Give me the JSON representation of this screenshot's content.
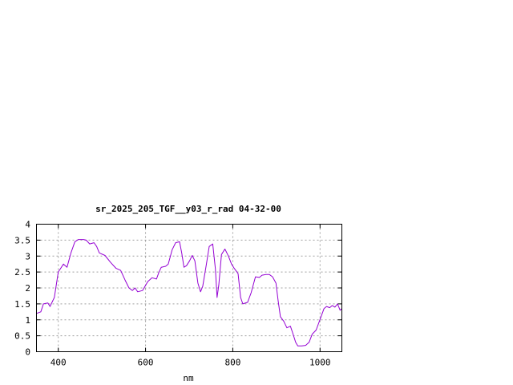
{
  "chart_data": {
    "type": "line",
    "title": "sr_2025_205_TGF__y03_r_rad 04-32-00",
    "xlabel": "nm",
    "ylabel": "",
    "xlim": [
      350,
      1050
    ],
    "ylim": [
      0,
      4
    ],
    "x_ticks": [
      400,
      600,
      800,
      1000
    ],
    "y_ticks": [
      0,
      0.5,
      1,
      1.5,
      2,
      2.5,
      3,
      3.5,
      4
    ],
    "x_tick_labels": [
      "400",
      "600",
      "800",
      "1000"
    ],
    "y_tick_labels": [
      "0",
      "0.5",
      "1",
      "1.5",
      "2",
      "2.5",
      "3",
      "3.5",
      "4"
    ],
    "grid": true,
    "series": [
      {
        "color": "#9400d3",
        "points": [
          [
            350,
            1.2
          ],
          [
            360,
            1.25
          ],
          [
            366,
            1.5
          ],
          [
            376,
            1.53
          ],
          [
            381,
            1.42
          ],
          [
            391,
            1.7
          ],
          [
            400,
            2.5
          ],
          [
            412,
            2.75
          ],
          [
            420,
            2.65
          ],
          [
            429,
            3.1
          ],
          [
            438,
            3.45
          ],
          [
            446,
            3.52
          ],
          [
            458,
            3.52
          ],
          [
            464,
            3.5
          ],
          [
            472,
            3.38
          ],
          [
            482,
            3.42
          ],
          [
            488,
            3.3
          ],
          [
            494,
            3.1
          ],
          [
            507,
            3.02
          ],
          [
            520,
            2.8
          ],
          [
            532,
            2.62
          ],
          [
            543,
            2.55
          ],
          [
            553,
            2.25
          ],
          [
            562,
            2.0
          ],
          [
            570,
            1.92
          ],
          [
            576,
            2.0
          ],
          [
            582,
            1.88
          ],
          [
            593,
            1.92
          ],
          [
            605,
            2.2
          ],
          [
            615,
            2.32
          ],
          [
            625,
            2.28
          ],
          [
            631,
            2.5
          ],
          [
            636,
            2.65
          ],
          [
            646,
            2.68
          ],
          [
            652,
            2.75
          ],
          [
            661,
            3.2
          ],
          [
            669,
            3.42
          ],
          [
            678,
            3.45
          ],
          [
            683,
            3.1
          ],
          [
            688,
            2.65
          ],
          [
            694,
            2.7
          ],
          [
            701,
            2.85
          ],
          [
            707,
            3.02
          ],
          [
            713,
            2.85
          ],
          [
            720,
            2.15
          ],
          [
            726,
            1.88
          ],
          [
            731,
            2.05
          ],
          [
            739,
            2.7
          ],
          [
            746,
            3.3
          ],
          [
            754,
            3.38
          ],
          [
            760,
            2.6
          ],
          [
            764,
            1.7
          ],
          [
            768,
            2.1
          ],
          [
            774,
            3.05
          ],
          [
            782,
            3.22
          ],
          [
            790,
            3.0
          ],
          [
            797,
            2.75
          ],
          [
            804,
            2.6
          ],
          [
            812,
            2.45
          ],
          [
            818,
            1.7
          ],
          [
            823,
            1.5
          ],
          [
            834,
            1.55
          ],
          [
            842,
            1.85
          ],
          [
            852,
            2.35
          ],
          [
            861,
            2.33
          ],
          [
            867,
            2.4
          ],
          [
            876,
            2.42
          ],
          [
            884,
            2.42
          ],
          [
            891,
            2.35
          ],
          [
            899,
            2.15
          ],
          [
            904,
            1.6
          ],
          [
            909,
            1.1
          ],
          [
            917,
            0.95
          ],
          [
            924,
            0.75
          ],
          [
            932,
            0.8
          ],
          [
            937,
            0.6
          ],
          [
            944,
            0.3
          ],
          [
            949,
            0.18
          ],
          [
            958,
            0.18
          ],
          [
            967,
            0.2
          ],
          [
            975,
            0.3
          ],
          [
            982,
            0.55
          ],
          [
            991,
            0.68
          ],
          [
            1001,
            1.05
          ],
          [
            1009,
            1.35
          ],
          [
            1015,
            1.42
          ],
          [
            1022,
            1.38
          ],
          [
            1028,
            1.45
          ],
          [
            1034,
            1.4
          ],
          [
            1040,
            1.5
          ],
          [
            1046,
            1.3
          ],
          [
            1050,
            1.35
          ]
        ]
      }
    ]
  }
}
